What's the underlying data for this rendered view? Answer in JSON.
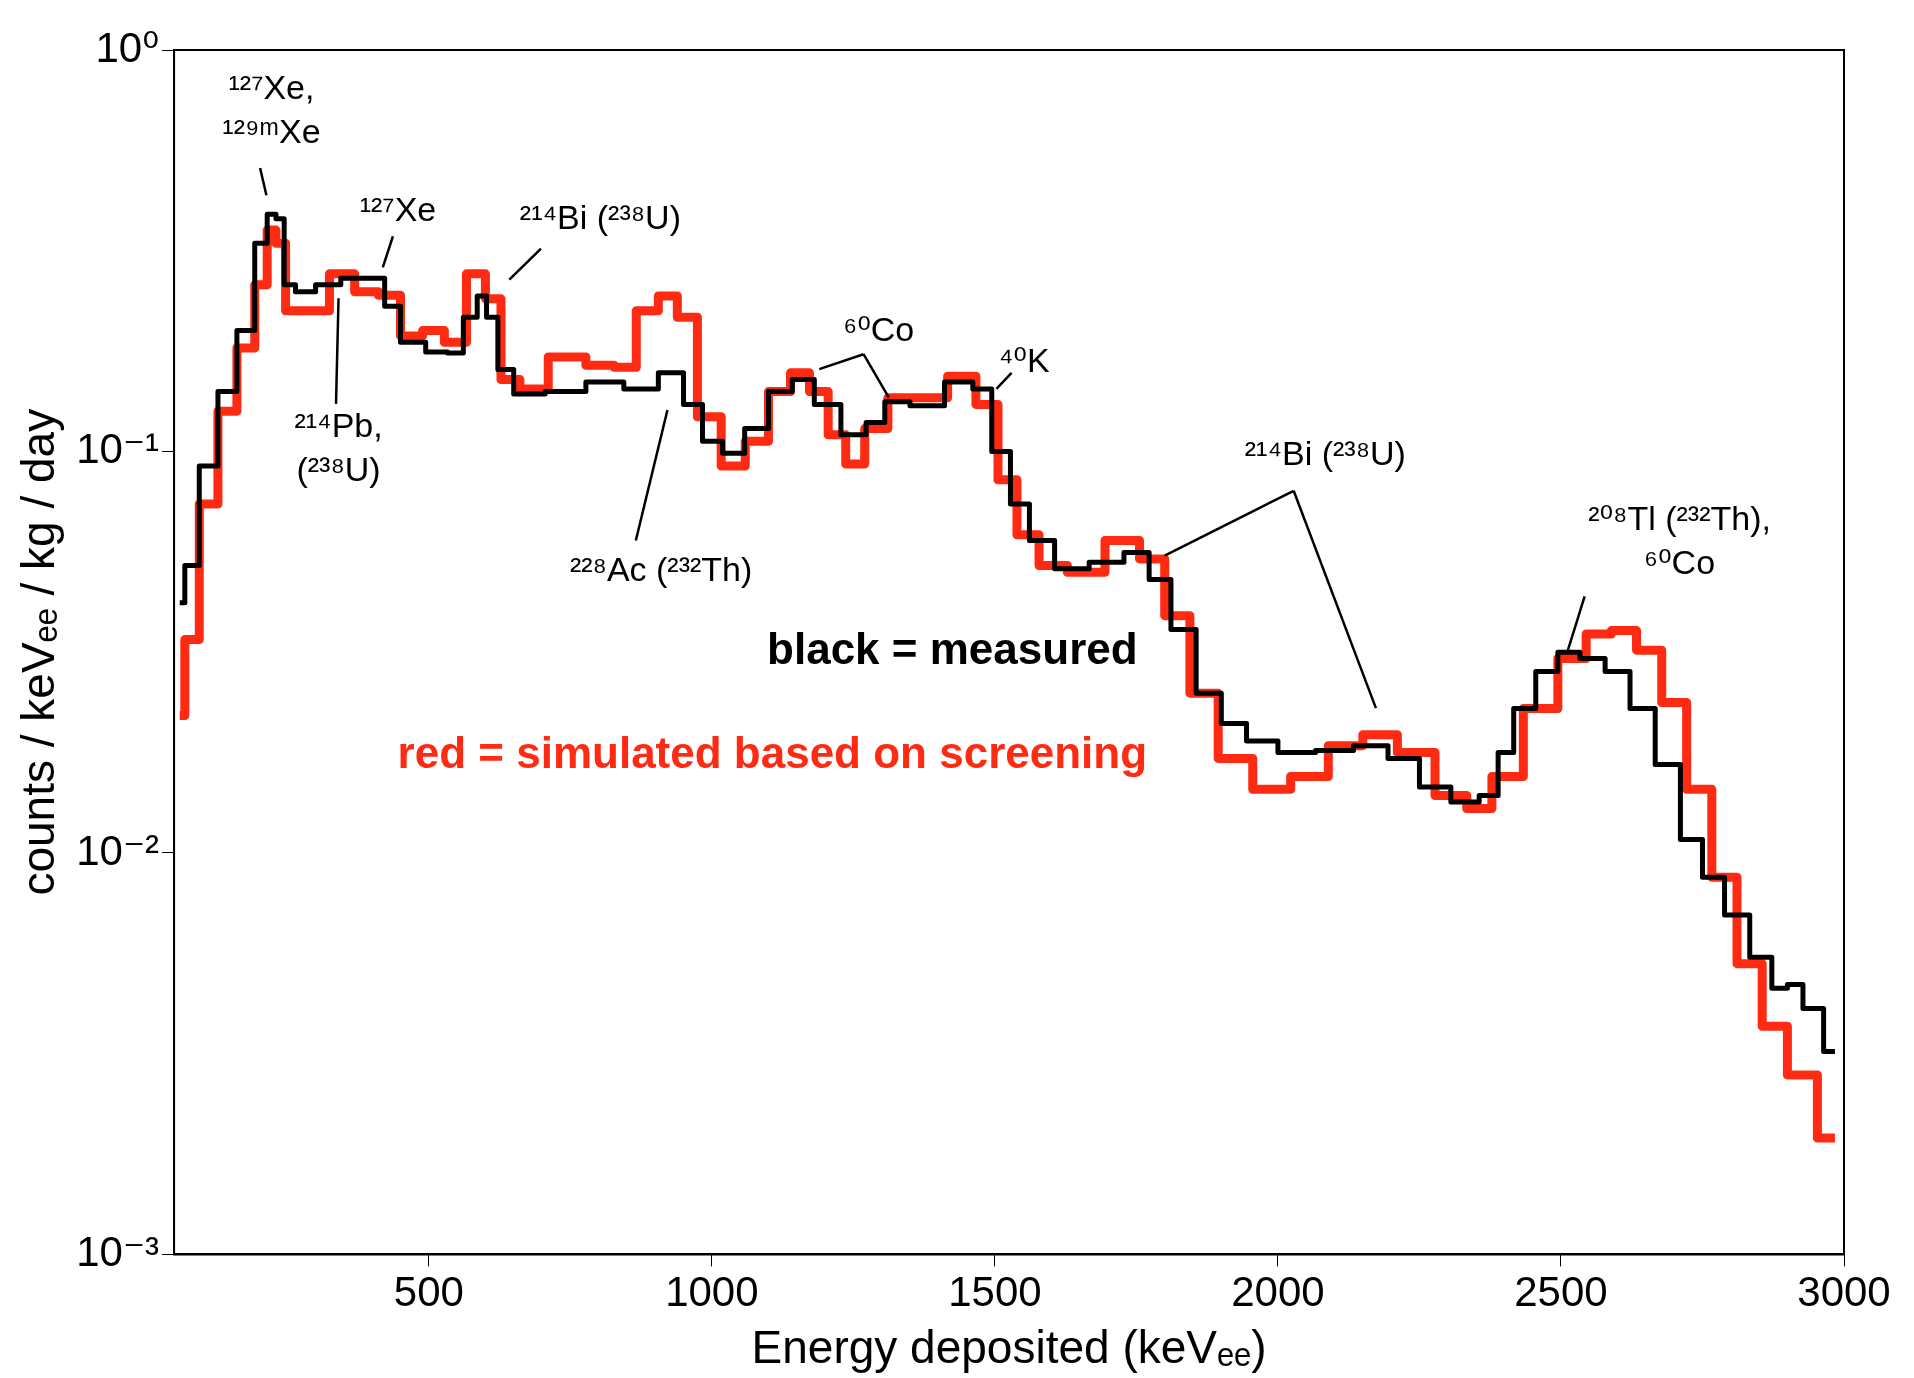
{
  "chart_data": {
    "type": "step",
    "xlabel": "Energy deposited (keVₑₑ)",
    "ylabel": "counts / keVₑₑ / kg / day",
    "log": "y",
    "xlim": [
      50,
      3000
    ],
    "xticks": [
      500,
      1000,
      1500,
      2000,
      2500,
      3000
    ],
    "ylim": [
      0.001,
      1
    ],
    "yticks": [
      {
        "value": 0.001,
        "label": "10⁻³"
      },
      {
        "value": 0.01,
        "label": "10⁻²"
      },
      {
        "value": 0.1,
        "label": "10⁻¹"
      },
      {
        "value": 1,
        "label": "10⁰"
      }
    ],
    "grid": false,
    "legend": "center",
    "series": [
      {
        "name": "black = measured",
        "color": "#000000",
        "x": [
          60,
          78,
          111,
          144,
          178,
          207,
          222,
          238,
          251,
          278,
          322,
          367,
          411,
          433,
          467,
          522,
          544,
          578,
          593,
          611,
          633,
          667,
          744,
          811,
          878,
          933,
          967,
          1000,
          1038,
          1078,
          1122,
          1162,
          1200,
          1256,
          1289,
          1322,
          1378,
          1444,
          1478,
          1511,
          1544,
          1578,
          1633,
          1700,
          1756,
          1789,
          1833,
          1878,
          1922,
          1967,
          2033,
          2100,
          2167,
          2222,
          2278,
          2333,
          2378,
          2400,
          2433,
          2478,
          2511,
          2556,
          2600,
          2644,
          2689,
          2733,
          2767,
          2811,
          2856,
          2889,
          2911,
          2944,
          2984
        ],
        "values": [
          0.042,
          0.052,
          0.092,
          0.141,
          0.2,
          0.33,
          0.39,
          0.38,
          0.26,
          0.25,
          0.26,
          0.27,
          0.27,
          0.23,
          0.187,
          0.177,
          0.176,
          0.216,
          0.244,
          0.216,
          0.16,
          0.139,
          0.141,
          0.149,
          0.143,
          0.157,
          0.131,
          0.106,
          0.099,
          0.114,
          0.141,
          0.151,
          0.131,
          0.11,
          0.118,
          0.133,
          0.13,
          0.149,
          0.143,
          0.1,
          0.074,
          0.06,
          0.051,
          0.053,
          0.056,
          0.048,
          0.036,
          0.025,
          0.021,
          0.019,
          0.0178,
          0.018,
          0.0185,
          0.0172,
          0.0146,
          0.0134,
          0.0139,
          0.0178,
          0.0229,
          0.0283,
          0.0316,
          0.0305,
          0.0283,
          0.0229,
          0.0166,
          0.0108,
          0.0087,
          0.007,
          0.0055,
          0.0046,
          0.0047,
          0.0041,
          0.0032
        ]
      },
      {
        "name": "red = simulated based on screening",
        "color": "#ff2a12",
        "x": [
          60,
          78,
          111,
          144,
          178,
          207,
          222,
          238,
          256,
          300,
          349,
          389,
          433,
          467,
          511,
          544,
          589,
          611,
          644,
          678,
          744,
          811,
          844,
          889,
          922,
          956,
          993,
          1040,
          1078,
          1122,
          1156,
          1189,
          1222,
          1251,
          1289,
          1333,
          1389,
          1444,
          1489,
          1522,
          1556,
          1600,
          1656,
          1733,
          1778,
          1822,
          1867,
          1922,
          1989,
          2056,
          2122,
          2178,
          2244,
          2311,
          2356,
          2400,
          2467,
          2522,
          2567,
          2611,
          2656,
          2700,
          2744,
          2789,
          2833,
          2878,
          2922,
          2984
        ],
        "values": [
          0.022,
          0.034,
          0.074,
          0.126,
          0.181,
          0.26,
          0.356,
          0.33,
          0.224,
          0.224,
          0.277,
          0.25,
          0.245,
          0.194,
          0.2,
          0.187,
          0.277,
          0.24,
          0.151,
          0.143,
          0.172,
          0.164,
          0.162,
          0.224,
          0.244,
          0.216,
          0.122,
          0.092,
          0.106,
          0.141,
          0.157,
          0.141,
          0.11,
          0.093,
          0.114,
          0.136,
          0.136,
          0.154,
          0.131,
          0.085,
          0.062,
          0.052,
          0.05,
          0.06,
          0.054,
          0.039,
          0.025,
          0.0172,
          0.0144,
          0.0155,
          0.0185,
          0.0197,
          0.0178,
          0.0139,
          0.0129,
          0.0155,
          0.0229,
          0.0305,
          0.0351,
          0.0358,
          0.032,
          0.0237,
          0.0144,
          0.0087,
          0.0053,
          0.0037,
          0.0028,
          0.00195
        ]
      }
    ],
    "annotations": [
      "¹²⁷Xe, ¹²⁹ᵐXe",
      "¹²⁷Xe",
      "²¹⁴Bi (²³⁸U)",
      "²¹⁴Pb, (²³⁸U)",
      "²²⁸Ac (²³²Th)",
      "⁶⁰Co",
      "⁴⁰K",
      {
        "text": "²¹⁴Bi (²³⁸U)",
        "x": 1800,
        "y": 0.055
      },
      {
        "text": "²⁰⁸Tl (²³²Th), ⁶⁰Co",
        "x": 2511,
        "y": 0.0316
      }
    ]
  }
}
